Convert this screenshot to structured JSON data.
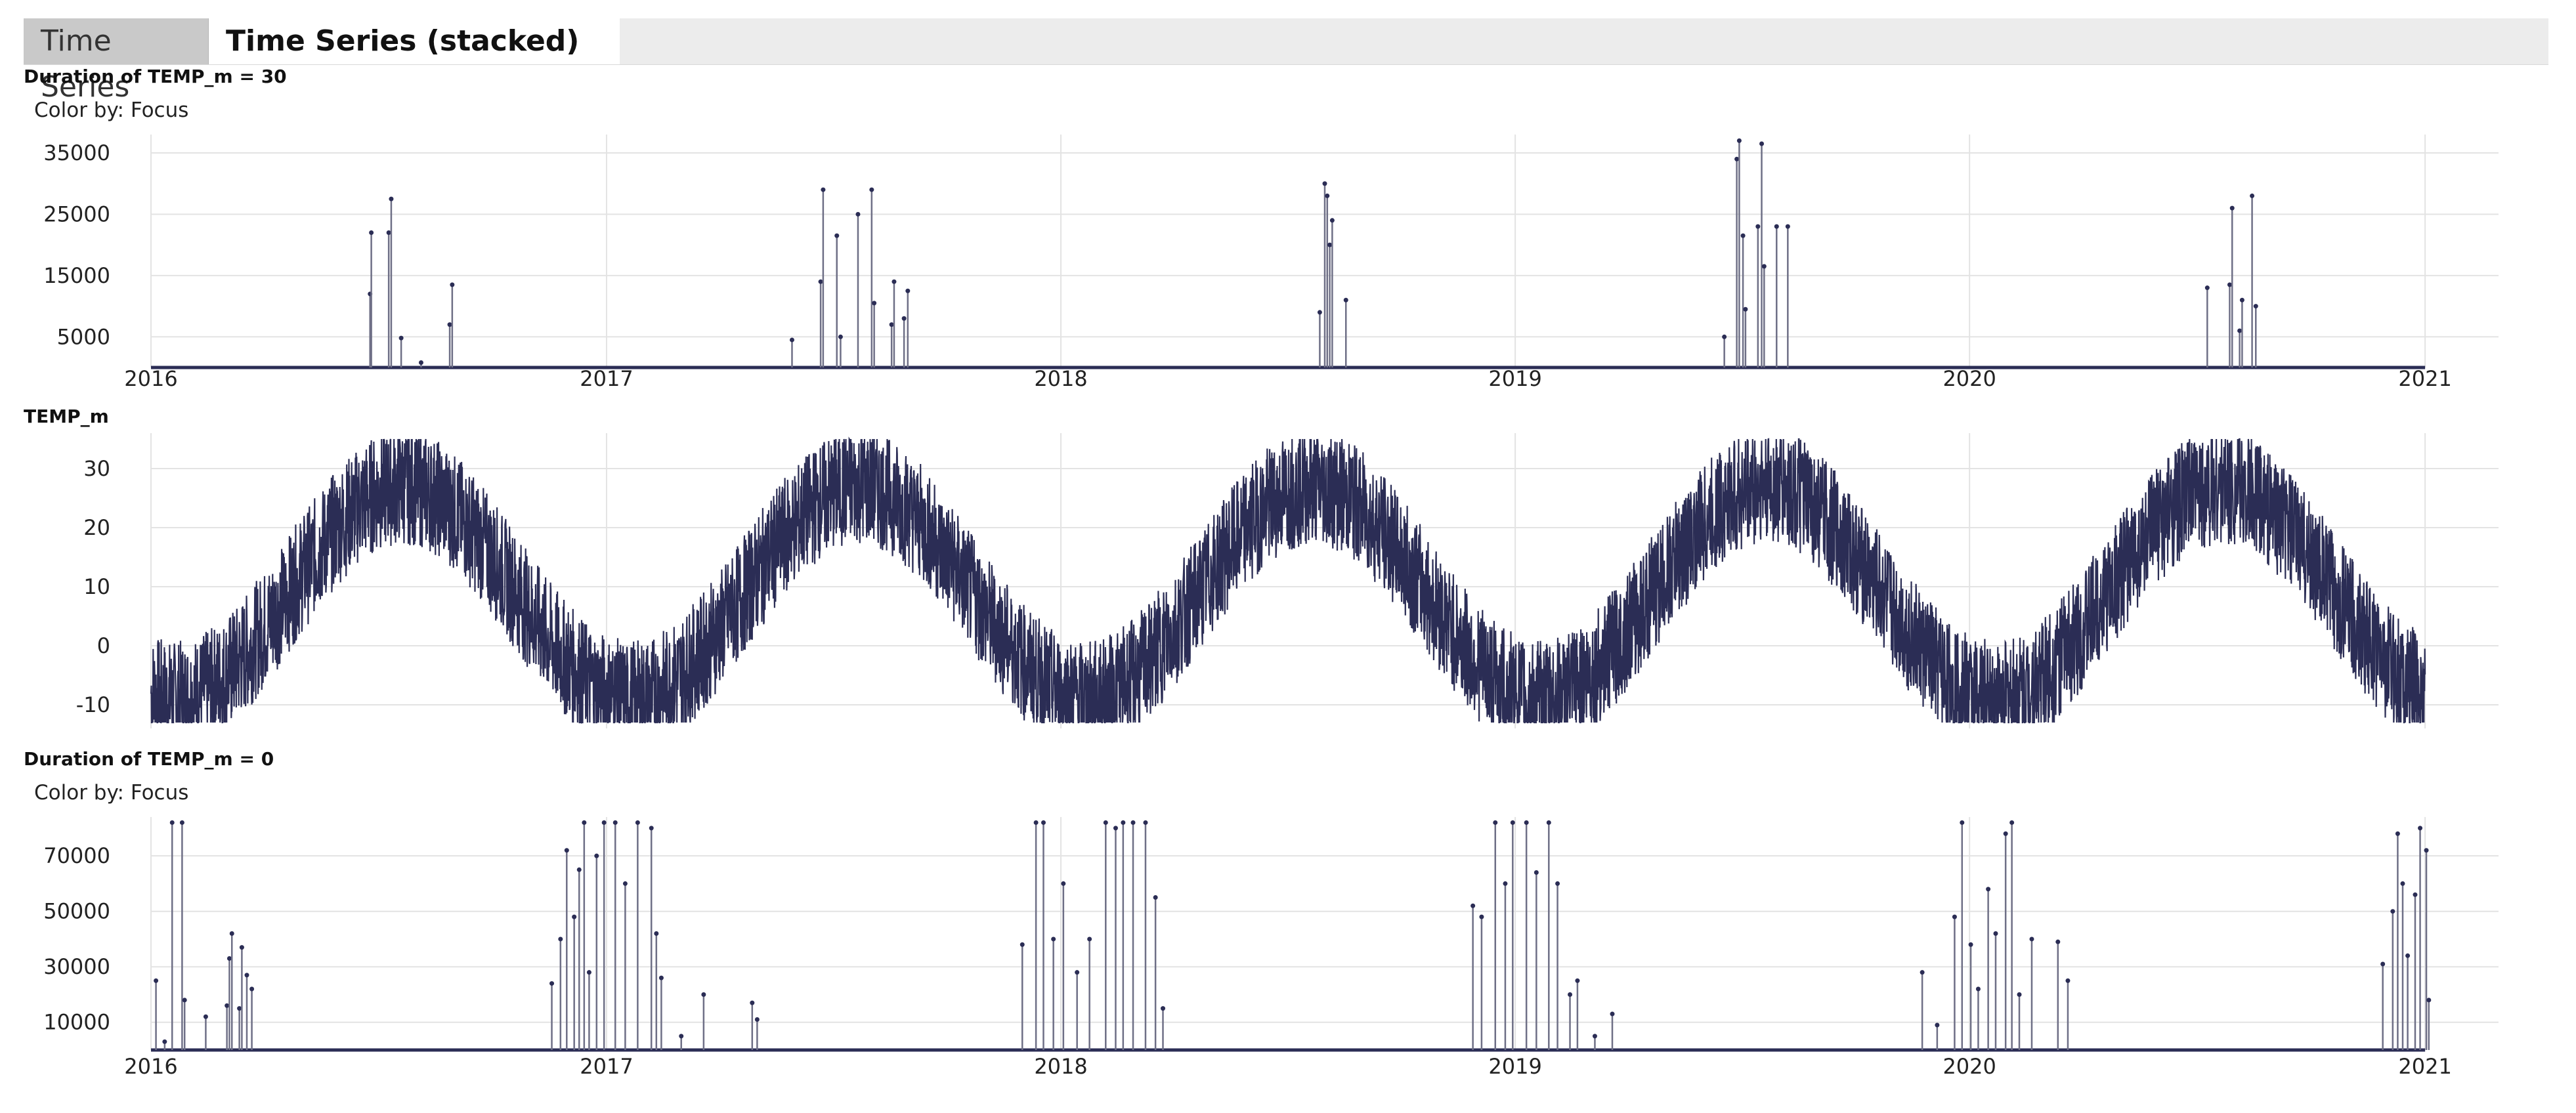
{
  "tabs": [
    {
      "label": "Time Series",
      "active": false
    },
    {
      "label": "Time Series (stacked)",
      "active": true
    }
  ],
  "colors": {
    "series": "#2b2d55",
    "grid": "#e3e3e3",
    "axis": "#cfcfcf"
  },
  "chart_data": [
    {
      "type": "line",
      "title": "Duration of TEMP_m = 30",
      "color_by": "Color by: Focus",
      "x_ticks": [
        "2016",
        "2017",
        "2018",
        "2019",
        "2020",
        "2021"
      ],
      "xlim": [
        "2016-01-01",
        "2021-03-01"
      ],
      "y_ticks": [
        5000,
        15000,
        25000,
        35000
      ],
      "ylim": [
        0,
        38000
      ],
      "spikes": [
        {
          "x": "2016-06-25",
          "y": 12000
        },
        {
          "x": "2016-06-26",
          "y": 22000
        },
        {
          "x": "2016-07-10",
          "y": 22000
        },
        {
          "x": "2016-07-12",
          "y": 27500
        },
        {
          "x": "2016-07-20",
          "y": 4800
        },
        {
          "x": "2016-08-05",
          "y": 800
        },
        {
          "x": "2016-08-28",
          "y": 7000
        },
        {
          "x": "2016-08-30",
          "y": 13500
        },
        {
          "x": "2017-05-30",
          "y": 4500
        },
        {
          "x": "2017-06-22",
          "y": 14000
        },
        {
          "x": "2017-06-24",
          "y": 29000
        },
        {
          "x": "2017-07-05",
          "y": 21500
        },
        {
          "x": "2017-07-08",
          "y": 5000
        },
        {
          "x": "2017-07-22",
          "y": 25000
        },
        {
          "x": "2017-08-02",
          "y": 29000
        },
        {
          "x": "2017-08-04",
          "y": 10500
        },
        {
          "x": "2017-08-18",
          "y": 7000
        },
        {
          "x": "2017-08-20",
          "y": 14000
        },
        {
          "x": "2017-08-28",
          "y": 8000
        },
        {
          "x": "2017-08-31",
          "y": 12500
        },
        {
          "x": "2018-07-28",
          "y": 9000
        },
        {
          "x": "2018-08-01",
          "y": 30000
        },
        {
          "x": "2018-08-03",
          "y": 28000
        },
        {
          "x": "2018-08-05",
          "y": 20000
        },
        {
          "x": "2018-08-07",
          "y": 24000
        },
        {
          "x": "2018-08-18",
          "y": 11000
        },
        {
          "x": "2019-06-18",
          "y": 5000
        },
        {
          "x": "2019-06-28",
          "y": 34000
        },
        {
          "x": "2019-06-30",
          "y": 37000
        },
        {
          "x": "2019-07-03",
          "y": 21500
        },
        {
          "x": "2019-07-05",
          "y": 9500
        },
        {
          "x": "2019-07-15",
          "y": 23000
        },
        {
          "x": "2019-07-18",
          "y": 36500
        },
        {
          "x": "2019-07-20",
          "y": 16500
        },
        {
          "x": "2019-07-30",
          "y": 23000
        },
        {
          "x": "2019-08-08",
          "y": 23000
        },
        {
          "x": "2020-07-10",
          "y": 13000
        },
        {
          "x": "2020-07-28",
          "y": 13500
        },
        {
          "x": "2020-07-30",
          "y": 26000
        },
        {
          "x": "2020-08-05",
          "y": 6000
        },
        {
          "x": "2020-08-07",
          "y": 11000
        },
        {
          "x": "2020-08-15",
          "y": 28000
        },
        {
          "x": "2020-08-18",
          "y": 10000
        }
      ]
    },
    {
      "type": "line",
      "title": "TEMP_m",
      "x_ticks": [
        "2016",
        "2017",
        "2018",
        "2019",
        "2020",
        "2021"
      ],
      "xlim": [
        "2016-01-01",
        "2021-03-01"
      ],
      "y_ticks": [
        -10,
        0,
        10,
        20,
        30
      ],
      "ylim": [
        -14,
        36
      ],
      "series_summary": {
        "first": "2016-01-01",
        "last": "2021-01-01",
        "min": -13,
        "max": 35,
        "peaks_month": "July",
        "troughs_month": "January"
      }
    },
    {
      "type": "line",
      "title": "Duration of TEMP_m = 0",
      "color_by": "Color by: Focus",
      "x_ticks": [
        "2016",
        "2017",
        "2018",
        "2019",
        "2020",
        "2021"
      ],
      "xlim": [
        "2016-01-01",
        "2021-03-01"
      ],
      "y_ticks": [
        10000,
        30000,
        50000,
        70000
      ],
      "ylim": [
        0,
        84000
      ],
      "spikes": [
        {
          "x": "2016-01-05",
          "y": 25000
        },
        {
          "x": "2016-01-12",
          "y": 3000
        },
        {
          "x": "2016-01-18",
          "y": 82000
        },
        {
          "x": "2016-01-26",
          "y": 82000
        },
        {
          "x": "2016-01-28",
          "y": 18000
        },
        {
          "x": "2016-02-14",
          "y": 12000
        },
        {
          "x": "2016-03-02",
          "y": 16000
        },
        {
          "x": "2016-03-04",
          "y": 33000
        },
        {
          "x": "2016-03-06",
          "y": 42000
        },
        {
          "x": "2016-03-12",
          "y": 15000
        },
        {
          "x": "2016-03-14",
          "y": 37000
        },
        {
          "x": "2016-03-18",
          "y": 27000
        },
        {
          "x": "2016-03-22",
          "y": 22000
        },
        {
          "x": "2016-11-18",
          "y": 24000
        },
        {
          "x": "2016-11-25",
          "y": 40000
        },
        {
          "x": "2016-11-30",
          "y": 72000
        },
        {
          "x": "2016-12-06",
          "y": 48000
        },
        {
          "x": "2016-12-10",
          "y": 65000
        },
        {
          "x": "2016-12-14",
          "y": 82000
        },
        {
          "x": "2016-12-18",
          "y": 28000
        },
        {
          "x": "2016-12-24",
          "y": 70000
        },
        {
          "x": "2016-12-30",
          "y": 82000
        },
        {
          "x": "2017-01-08",
          "y": 82000
        },
        {
          "x": "2017-01-16",
          "y": 60000
        },
        {
          "x": "2017-01-26",
          "y": 82000
        },
        {
          "x": "2017-02-06",
          "y": 80000
        },
        {
          "x": "2017-02-10",
          "y": 42000
        },
        {
          "x": "2017-02-14",
          "y": 26000
        },
        {
          "x": "2017-03-02",
          "y": 5000
        },
        {
          "x": "2017-03-20",
          "y": 20000
        },
        {
          "x": "2017-04-28",
          "y": 17000
        },
        {
          "x": "2017-05-02",
          "y": 11000
        },
        {
          "x": "2017-12-01",
          "y": 38000
        },
        {
          "x": "2017-12-12",
          "y": 82000
        },
        {
          "x": "2017-12-18",
          "y": 82000
        },
        {
          "x": "2017-12-26",
          "y": 40000
        },
        {
          "x": "2018-01-03",
          "y": 60000
        },
        {
          "x": "2018-01-14",
          "y": 28000
        },
        {
          "x": "2018-01-24",
          "y": 40000
        },
        {
          "x": "2018-02-06",
          "y": 82000
        },
        {
          "x": "2018-02-14",
          "y": 80000
        },
        {
          "x": "2018-02-20",
          "y": 82000
        },
        {
          "x": "2018-02-28",
          "y": 82000
        },
        {
          "x": "2018-03-10",
          "y": 82000
        },
        {
          "x": "2018-03-18",
          "y": 55000
        },
        {
          "x": "2018-03-24",
          "y": 15000
        },
        {
          "x": "2018-11-28",
          "y": 52000
        },
        {
          "x": "2018-12-05",
          "y": 48000
        },
        {
          "x": "2018-12-16",
          "y": 82000
        },
        {
          "x": "2018-12-24",
          "y": 60000
        },
        {
          "x": "2018-12-30",
          "y": 82000
        },
        {
          "x": "2019-01-10",
          "y": 82000
        },
        {
          "x": "2019-01-18",
          "y": 64000
        },
        {
          "x": "2019-01-28",
          "y": 82000
        },
        {
          "x": "2019-02-04",
          "y": 60000
        },
        {
          "x": "2019-02-14",
          "y": 20000
        },
        {
          "x": "2019-02-20",
          "y": 25000
        },
        {
          "x": "2019-03-06",
          "y": 5000
        },
        {
          "x": "2019-03-20",
          "y": 13000
        },
        {
          "x": "2019-11-24",
          "y": 28000
        },
        {
          "x": "2019-12-06",
          "y": 9000
        },
        {
          "x": "2019-12-20",
          "y": 48000
        },
        {
          "x": "2019-12-26",
          "y": 82000
        },
        {
          "x": "2020-01-02",
          "y": 38000
        },
        {
          "x": "2020-01-08",
          "y": 22000
        },
        {
          "x": "2020-01-16",
          "y": 58000
        },
        {
          "x": "2020-01-22",
          "y": 42000
        },
        {
          "x": "2020-01-30",
          "y": 78000
        },
        {
          "x": "2020-02-04",
          "y": 82000
        },
        {
          "x": "2020-02-10",
          "y": 20000
        },
        {
          "x": "2020-02-20",
          "y": 40000
        },
        {
          "x": "2020-03-12",
          "y": 39000
        },
        {
          "x": "2020-03-20",
          "y": 25000
        },
        {
          "x": "2020-11-28",
          "y": 31000
        },
        {
          "x": "2020-12-06",
          "y": 50000
        },
        {
          "x": "2020-12-10",
          "y": 78000
        },
        {
          "x": "2020-12-14",
          "y": 60000
        },
        {
          "x": "2020-12-18",
          "y": 34000
        },
        {
          "x": "2020-12-24",
          "y": 56000
        },
        {
          "x": "2020-12-28",
          "y": 80000
        },
        {
          "x": "2021-01-02",
          "y": 72000
        },
        {
          "x": "2021-01-04",
          "y": 18000
        }
      ]
    }
  ]
}
